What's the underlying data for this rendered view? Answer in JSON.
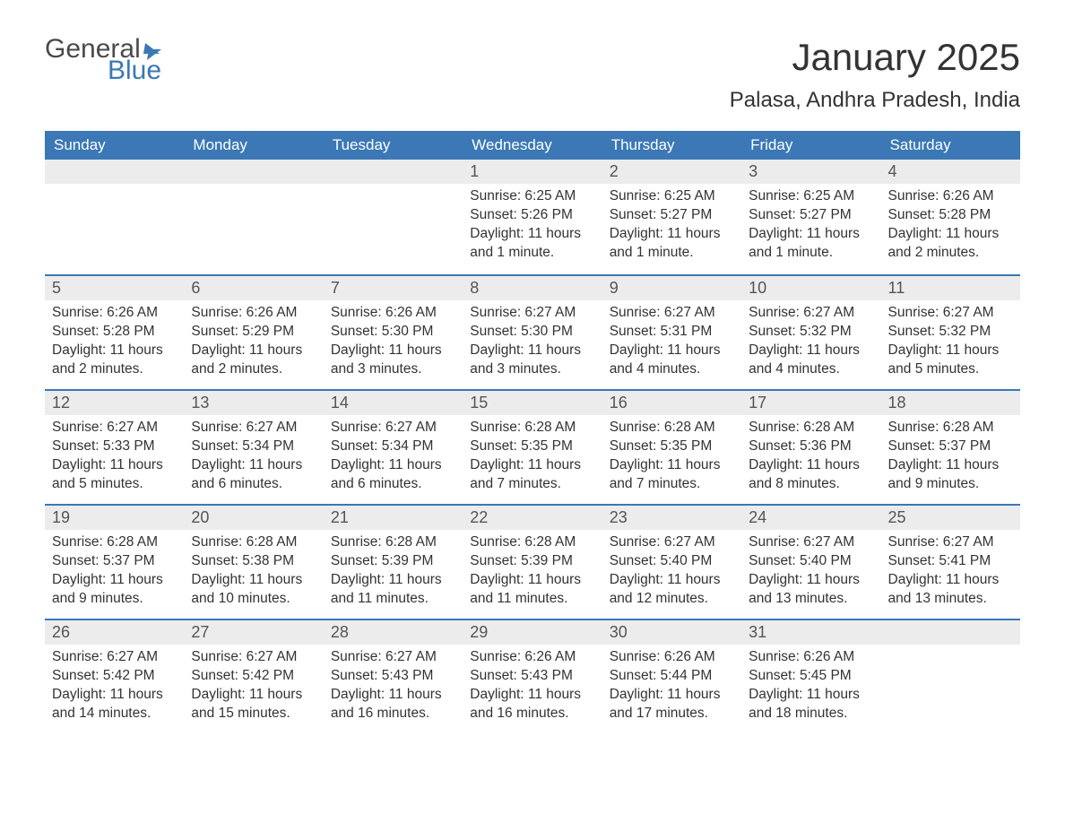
{
  "brand": {
    "word1": "General",
    "word2": "Blue"
  },
  "title": "January 2025",
  "location": "Palasa, Andhra Pradesh, India",
  "colors": {
    "header_bg": "#3b78b5",
    "header_text": "#ffffff",
    "daynum_bg": "#ececec",
    "row_border": "#3b78b5",
    "body_text": "#333333",
    "logo_gray": "#4a4a4a",
    "logo_blue": "#3b78b5",
    "page_bg": "#ffffff"
  },
  "font": {
    "family": "Arial",
    "title_size_pt": 32,
    "location_size_pt": 18,
    "header_size_pt": 13,
    "body_size_pt": 12
  },
  "day_headers": [
    "Sunday",
    "Monday",
    "Tuesday",
    "Wednesday",
    "Thursday",
    "Friday",
    "Saturday"
  ],
  "label_sunrise": "Sunrise: ",
  "label_sunset": "Sunset: ",
  "label_daylight": "Daylight: ",
  "weeks": [
    [
      null,
      null,
      null,
      {
        "n": "1",
        "sunrise": "6:25 AM",
        "sunset": "5:26 PM",
        "daylight": "11 hours and 1 minute."
      },
      {
        "n": "2",
        "sunrise": "6:25 AM",
        "sunset": "5:27 PM",
        "daylight": "11 hours and 1 minute."
      },
      {
        "n": "3",
        "sunrise": "6:25 AM",
        "sunset": "5:27 PM",
        "daylight": "11 hours and 1 minute."
      },
      {
        "n": "4",
        "sunrise": "6:26 AM",
        "sunset": "5:28 PM",
        "daylight": "11 hours and 2 minutes."
      }
    ],
    [
      {
        "n": "5",
        "sunrise": "6:26 AM",
        "sunset": "5:28 PM",
        "daylight": "11 hours and 2 minutes."
      },
      {
        "n": "6",
        "sunrise": "6:26 AM",
        "sunset": "5:29 PM",
        "daylight": "11 hours and 2 minutes."
      },
      {
        "n": "7",
        "sunrise": "6:26 AM",
        "sunset": "5:30 PM",
        "daylight": "11 hours and 3 minutes."
      },
      {
        "n": "8",
        "sunrise": "6:27 AM",
        "sunset": "5:30 PM",
        "daylight": "11 hours and 3 minutes."
      },
      {
        "n": "9",
        "sunrise": "6:27 AM",
        "sunset": "5:31 PM",
        "daylight": "11 hours and 4 minutes."
      },
      {
        "n": "10",
        "sunrise": "6:27 AM",
        "sunset": "5:32 PM",
        "daylight": "11 hours and 4 minutes."
      },
      {
        "n": "11",
        "sunrise": "6:27 AM",
        "sunset": "5:32 PM",
        "daylight": "11 hours and 5 minutes."
      }
    ],
    [
      {
        "n": "12",
        "sunrise": "6:27 AM",
        "sunset": "5:33 PM",
        "daylight": "11 hours and 5 minutes."
      },
      {
        "n": "13",
        "sunrise": "6:27 AM",
        "sunset": "5:34 PM",
        "daylight": "11 hours and 6 minutes."
      },
      {
        "n": "14",
        "sunrise": "6:27 AM",
        "sunset": "5:34 PM",
        "daylight": "11 hours and 6 minutes."
      },
      {
        "n": "15",
        "sunrise": "6:28 AM",
        "sunset": "5:35 PM",
        "daylight": "11 hours and 7 minutes."
      },
      {
        "n": "16",
        "sunrise": "6:28 AM",
        "sunset": "5:35 PM",
        "daylight": "11 hours and 7 minutes."
      },
      {
        "n": "17",
        "sunrise": "6:28 AM",
        "sunset": "5:36 PM",
        "daylight": "11 hours and 8 minutes."
      },
      {
        "n": "18",
        "sunrise": "6:28 AM",
        "sunset": "5:37 PM",
        "daylight": "11 hours and 9 minutes."
      }
    ],
    [
      {
        "n": "19",
        "sunrise": "6:28 AM",
        "sunset": "5:37 PM",
        "daylight": "11 hours and 9 minutes."
      },
      {
        "n": "20",
        "sunrise": "6:28 AM",
        "sunset": "5:38 PM",
        "daylight": "11 hours and 10 minutes."
      },
      {
        "n": "21",
        "sunrise": "6:28 AM",
        "sunset": "5:39 PM",
        "daylight": "11 hours and 11 minutes."
      },
      {
        "n": "22",
        "sunrise": "6:28 AM",
        "sunset": "5:39 PM",
        "daylight": "11 hours and 11 minutes."
      },
      {
        "n": "23",
        "sunrise": "6:27 AM",
        "sunset": "5:40 PM",
        "daylight": "11 hours and 12 minutes."
      },
      {
        "n": "24",
        "sunrise": "6:27 AM",
        "sunset": "5:40 PM",
        "daylight": "11 hours and 13 minutes."
      },
      {
        "n": "25",
        "sunrise": "6:27 AM",
        "sunset": "5:41 PM",
        "daylight": "11 hours and 13 minutes."
      }
    ],
    [
      {
        "n": "26",
        "sunrise": "6:27 AM",
        "sunset": "5:42 PM",
        "daylight": "11 hours and 14 minutes."
      },
      {
        "n": "27",
        "sunrise": "6:27 AM",
        "sunset": "5:42 PM",
        "daylight": "11 hours and 15 minutes."
      },
      {
        "n": "28",
        "sunrise": "6:27 AM",
        "sunset": "5:43 PM",
        "daylight": "11 hours and 16 minutes."
      },
      {
        "n": "29",
        "sunrise": "6:26 AM",
        "sunset": "5:43 PM",
        "daylight": "11 hours and 16 minutes."
      },
      {
        "n": "30",
        "sunrise": "6:26 AM",
        "sunset": "5:44 PM",
        "daylight": "11 hours and 17 minutes."
      },
      {
        "n": "31",
        "sunrise": "6:26 AM",
        "sunset": "5:45 PM",
        "daylight": "11 hours and 18 minutes."
      },
      null
    ]
  ]
}
